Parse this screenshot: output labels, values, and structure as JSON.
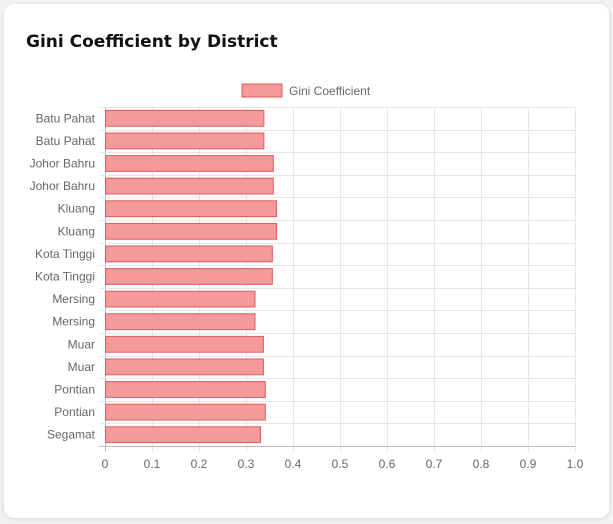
{
  "card": {
    "title": "Gini Coefficient by District"
  },
  "chart_data": {
    "type": "bar",
    "orientation": "horizontal",
    "categories": [
      "Batu Pahat",
      "Batu Pahat",
      "Johor Bahru",
      "Johor Bahru",
      "Kluang",
      "Kluang",
      "Kota Tinggi",
      "Kota Tinggi",
      "Mersing",
      "Mersing",
      "Muar",
      "Muar",
      "Pontian",
      "Pontian",
      "Segamat"
    ],
    "series": [
      {
        "name": "Gini Coefficient",
        "values": [
          0.337,
          0.337,
          0.357,
          0.357,
          0.364,
          0.364,
          0.355,
          0.355,
          0.318,
          0.318,
          0.336,
          0.336,
          0.34,
          0.34,
          0.33
        ],
        "color": "#f59a9a",
        "border_color": "#e05b5b"
      }
    ],
    "title": "Gini Coefficient by District",
    "xlabel": "",
    "ylabel": "",
    "xlim": [
      0,
      1.0
    ],
    "xticks": [
      "0",
      "0.1",
      "0.2",
      "0.3",
      "0.4",
      "0.5",
      "0.6",
      "0.7",
      "0.8",
      "0.9",
      "1.0"
    ],
    "grid": true,
    "legend": "top-center"
  }
}
